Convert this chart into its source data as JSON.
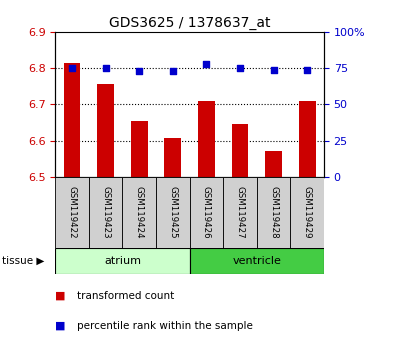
{
  "title": "GDS3625 / 1378637_at",
  "samples": [
    "GSM119422",
    "GSM119423",
    "GSM119424",
    "GSM119425",
    "GSM119426",
    "GSM119427",
    "GSM119428",
    "GSM119429"
  ],
  "red_values": [
    6.815,
    6.755,
    6.655,
    6.607,
    6.71,
    6.645,
    6.573,
    6.71
  ],
  "blue_values": [
    75,
    75,
    73,
    73,
    78,
    75,
    74,
    74
  ],
  "ylim_left": [
    6.5,
    6.9
  ],
  "ylim_right": [
    0,
    100
  ],
  "yticks_left": [
    6.5,
    6.6,
    6.7,
    6.8,
    6.9
  ],
  "yticks_right": [
    0,
    25,
    50,
    75,
    100
  ],
  "ytick_labels_right": [
    "0",
    "25",
    "50",
    "75",
    "100%"
  ],
  "bar_color": "#cc0000",
  "dot_color": "#0000cc",
  "bar_width": 0.5,
  "tick_color_left": "#cc0000",
  "tick_color_right": "#0000cc",
  "atrium_color": "#ccffcc",
  "ventricle_color": "#44cc44",
  "sample_box_color": "#d0d0d0",
  "tissue_groups": [
    {
      "label": "atrium",
      "start": 0,
      "end": 4
    },
    {
      "label": "ventricle",
      "start": 4,
      "end": 8
    }
  ],
  "legend_items": [
    {
      "label": "transformed count",
      "color": "#cc0000"
    },
    {
      "label": "percentile rank within the sample",
      "color": "#0000cc"
    }
  ]
}
